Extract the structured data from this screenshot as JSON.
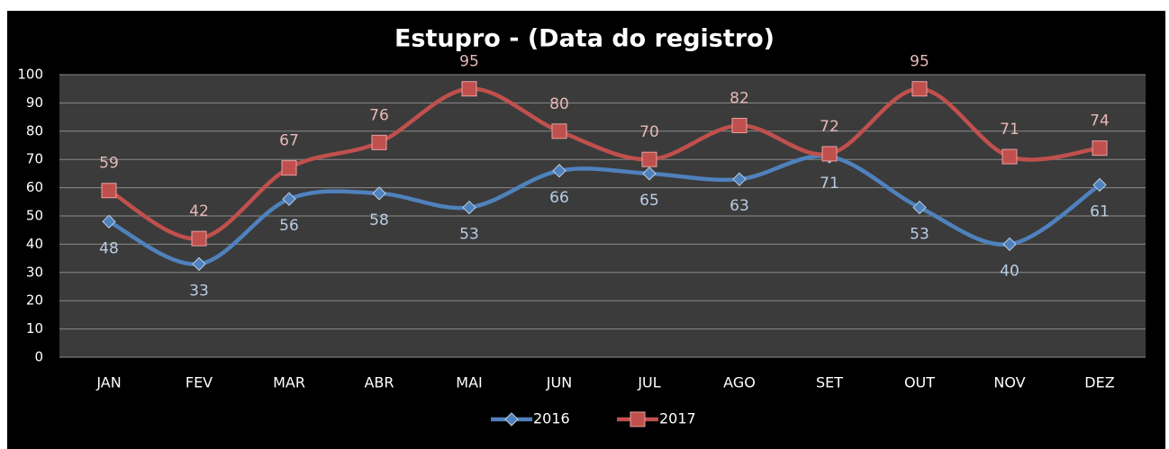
{
  "chart_data": {
    "type": "line",
    "title": "Estupro - (Data do registro)",
    "categories": [
      "JAN",
      "FEV",
      "MAR",
      "ABR",
      "MAI",
      "JUN",
      "JUL",
      "AGO",
      "SET",
      "OUT",
      "NOV",
      "DEZ"
    ],
    "series": [
      {
        "name": "2016",
        "color": "#4f81bd",
        "label_color": "#b9cde5",
        "marker": "diamond",
        "label_position": "below",
        "values": [
          48,
          33,
          56,
          58,
          53,
          66,
          65,
          63,
          71,
          53,
          40,
          61
        ]
      },
      {
        "name": "2017",
        "color": "#c0504d",
        "label_color": "#e6b9b8",
        "marker": "square",
        "label_position": "above",
        "values": [
          59,
          42,
          67,
          76,
          95,
          80,
          70,
          82,
          72,
          95,
          71,
          74
        ]
      }
    ],
    "ylim": [
      0,
      100
    ],
    "yticks": [
      0,
      10,
      20,
      30,
      40,
      50,
      60,
      70,
      80,
      90,
      100
    ],
    "grid": true,
    "smooth": true,
    "legend": "bottom"
  }
}
